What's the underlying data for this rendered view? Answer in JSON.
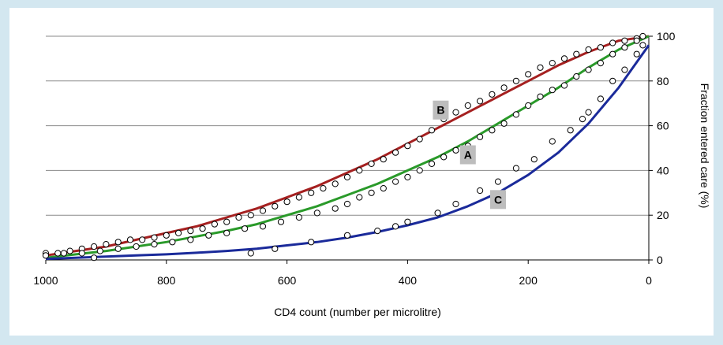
{
  "chart_data": {
    "type": "scatter",
    "title": "",
    "xlabel": "CD4 count (number per microlitre)",
    "ylabel": "Fraction entered care (%)",
    "x_reversed": true,
    "xlim": [
      0,
      1000
    ],
    "ylim": [
      0,
      100
    ],
    "x_ticks": [
      "1000",
      "800",
      "600",
      "400",
      "200",
      "0"
    ],
    "y_ticks": [
      "0",
      "20",
      "40",
      "60",
      "80",
      "100"
    ],
    "grid": "horizontal",
    "legend": "none",
    "curve_labels": [
      {
        "label": "B",
        "x": 345,
        "y": 67
      },
      {
        "label": "A",
        "x": 300,
        "y": 47
      },
      {
        "label": "C",
        "x": 250,
        "y": 27
      }
    ],
    "series": [
      {
        "color": "#a52020",
        "line": {
          "x": [
            1000,
            950,
            900,
            850,
            800,
            750,
            700,
            650,
            600,
            550,
            500,
            450,
            400,
            350,
            300,
            250,
            200,
            150,
            100,
            50,
            0
          ],
          "y": [
            2,
            4,
            6,
            9,
            12,
            15,
            19,
            23,
            28,
            33,
            39,
            45,
            52,
            59,
            66,
            73,
            80,
            87,
            93,
            98,
            100
          ]
        },
        "points": {
          "x": [
            1000,
            980,
            960,
            940,
            920,
            900,
            880,
            860,
            840,
            820,
            800,
            780,
            760,
            740,
            720,
            700,
            680,
            660,
            640,
            620,
            600,
            580,
            560,
            540,
            520,
            500,
            480,
            460,
            440,
            420,
            400,
            380,
            360,
            340,
            320,
            300,
            280,
            260,
            240,
            220,
            200,
            180,
            160,
            140,
            120,
            100,
            80,
            60,
            40,
            20,
            10
          ],
          "y": [
            3,
            3,
            4,
            5,
            6,
            7,
            8,
            9,
            9,
            10,
            11,
            12,
            13,
            14,
            16,
            17,
            19,
            20,
            22,
            24,
            26,
            28,
            30,
            32,
            34,
            37,
            40,
            43,
            45,
            48,
            51,
            54,
            58,
            63,
            66,
            69,
            71,
            74,
            77,
            80,
            83,
            86,
            88,
            90,
            92,
            94,
            95,
            97,
            98,
            99,
            100
          ]
        }
      },
      {
        "color": "#2a9a2a",
        "line": {
          "x": [
            1000,
            950,
            900,
            850,
            800,
            750,
            700,
            650,
            600,
            550,
            500,
            450,
            400,
            350,
            300,
            250,
            200,
            150,
            100,
            50,
            0
          ],
          "y": [
            1,
            2.5,
            4,
            6,
            8,
            10.5,
            13,
            16,
            20,
            24,
            29,
            34,
            40,
            46,
            53,
            61,
            69,
            77,
            86,
            94,
            100
          ]
        },
        "points": {
          "x": [
            1000,
            970,
            940,
            910,
            880,
            850,
            820,
            790,
            760,
            730,
            700,
            670,
            640,
            610,
            580,
            550,
            520,
            500,
            480,
            460,
            440,
            420,
            400,
            380,
            360,
            340,
            320,
            300,
            280,
            260,
            240,
            220,
            200,
            180,
            160,
            140,
            120,
            100,
            80,
            60,
            40,
            20
          ],
          "y": [
            2,
            3,
            3,
            4,
            5,
            6,
            7,
            8,
            9,
            11,
            12,
            14,
            15,
            17,
            19,
            21,
            23,
            25,
            28,
            30,
            32,
            35,
            37,
            40,
            43,
            46,
            49,
            51,
            55,
            58,
            61,
            65,
            69,
            73,
            76,
            78,
            82,
            85,
            88,
            92,
            95,
            98
          ]
        }
      },
      {
        "color": "#1a2a9a",
        "line": {
          "x": [
            1000,
            950,
            900,
            850,
            800,
            750,
            700,
            650,
            600,
            550,
            500,
            450,
            400,
            350,
            300,
            250,
            200,
            150,
            100,
            50,
            0
          ],
          "y": [
            0.5,
            1,
            1.5,
            2,
            2.5,
            3.2,
            4,
            5,
            6.5,
            8,
            10,
            12.5,
            15.5,
            19,
            24,
            30,
            38,
            48,
            61,
            77,
            96
          ]
        },
        "points": {
          "x": [
            920,
            660,
            620,
            560,
            500,
            450,
            420,
            400,
            350,
            320,
            280,
            250,
            220,
            190,
            160,
            130,
            110,
            100,
            80,
            60,
            40,
            20,
            10
          ],
          "y": [
            1,
            3,
            5,
            8,
            11,
            13,
            15,
            17,
            21,
            25,
            31,
            35,
            41,
            45,
            53,
            58,
            63,
            66,
            72,
            80,
            85,
            92,
            96
          ]
        }
      }
    ]
  }
}
